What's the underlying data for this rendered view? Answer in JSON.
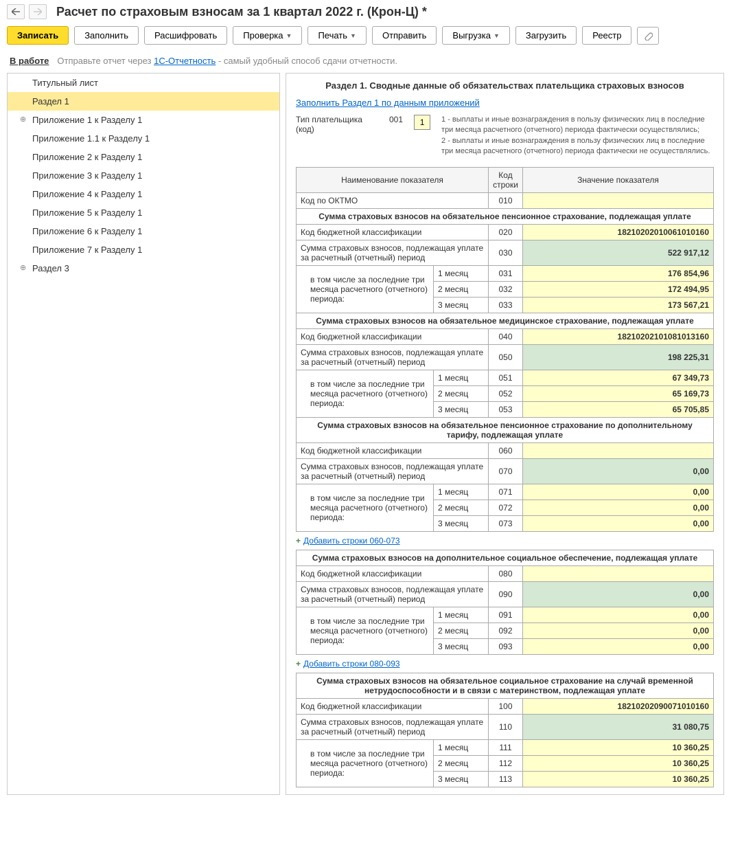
{
  "header": {
    "title": "Расчет по страховым взносам за 1 квартал 2022 г. (Крон-Ц) *"
  },
  "toolbar": {
    "write": "Записать",
    "fill": "Заполнить",
    "decode": "Расшифровать",
    "check": "Проверка",
    "print": "Печать",
    "send": "Отправить",
    "export": "Выгрузка",
    "load": "Загрузить",
    "registry": "Реестр"
  },
  "status": {
    "label": "В работе",
    "info_pre": "Отправьте отчет через ",
    "info_link": "1С-Отчетность",
    "info_post": " - самый удобный способ сдачи отчетности."
  },
  "tree": [
    {
      "label": "Титульный лист",
      "expand": false,
      "active": false
    },
    {
      "label": "Раздел 1",
      "expand": false,
      "active": true
    },
    {
      "label": "Приложение 1 к Разделу 1",
      "expand": true,
      "active": false
    },
    {
      "label": "Приложение 1.1 к Разделу 1",
      "expand": false,
      "active": false
    },
    {
      "label": "Приложение 2 к Разделу 1",
      "expand": false,
      "active": false
    },
    {
      "label": "Приложение 3 к Разделу 1",
      "expand": false,
      "active": false
    },
    {
      "label": "Приложение 4 к Разделу 1",
      "expand": false,
      "active": false
    },
    {
      "label": "Приложение 5 к Разделу 1",
      "expand": false,
      "active": false
    },
    {
      "label": "Приложение 6 к Разделу 1",
      "expand": false,
      "active": false
    },
    {
      "label": "Приложение 7 к Разделу 1",
      "expand": false,
      "active": false
    },
    {
      "label": "Раздел 3",
      "expand": true,
      "active": false
    }
  ],
  "section": {
    "title": "Раздел 1. Сводные данные об обязательствах плательщика страховых взносов",
    "fill_link": "Заполнить Раздел 1 по данным приложений",
    "payer_label": "Тип плательщика (код)",
    "payer_code": "001",
    "payer_input": "1",
    "payer_desc": "1 - выплаты и иные вознаграждения в пользу физических лиц в последние три месяца расчетного (отчетного) периода фактически осуществлялись;\n2 - выплаты и иные вознаграждения в пользу физических лиц в последние три месяца расчетного (отчетного) периода фактически не осуществлялись."
  },
  "table": {
    "headers": {
      "name": "Наименование показателя",
      "code": "Код строки",
      "value": "Значение показателя"
    },
    "oktmo": {
      "label": "Код по ОКТМО",
      "code": "010",
      "value": ""
    },
    "months": {
      "m1": "1 месяц",
      "m2": "2 месяц",
      "m3": "3 месяц"
    },
    "labels": {
      "kbk": "Код бюджетной классификации",
      "sum_period": "Сумма страховых взносов, подлежащая уплате за расчетный (отчетный) период",
      "incl_months": "в том числе за последние три месяца расчетного (отчетного) периода:"
    },
    "groups": [
      {
        "title": "Сумма страховых взносов на обязательное пенсионное страхование, подлежащая уплате",
        "kbk_code": "020",
        "kbk_val": "18210202010061010160",
        "sum_code": "030",
        "sum_val": "522 917,12",
        "m1_code": "031",
        "m1_val": "176 854,96",
        "m2_code": "032",
        "m2_val": "172 494,95",
        "m3_code": "033",
        "m3_val": "173 567,21",
        "add_link": ""
      },
      {
        "title": "Сумма страховых взносов на обязательное медицинское страхование, подлежащая уплате",
        "kbk_code": "040",
        "kbk_val": "18210202101081013160",
        "sum_code": "050",
        "sum_val": "198 225,31",
        "m1_code": "051",
        "m1_val": "67 349,73",
        "m2_code": "052",
        "m2_val": "65 169,73",
        "m3_code": "053",
        "m3_val": "65 705,85",
        "add_link": ""
      },
      {
        "title": "Сумма страховых взносов на обязательное пенсионное страхование по дополнительному тарифу, подлежащая уплате",
        "kbk_code": "060",
        "kbk_val": "",
        "sum_code": "070",
        "sum_val": "0,00",
        "m1_code": "071",
        "m1_val": "0,00",
        "m2_code": "072",
        "m2_val": "0,00",
        "m3_code": "073",
        "m3_val": "0,00",
        "add_link": "Добавить строки 060-073"
      },
      {
        "title": "Сумма страховых взносов на дополнительное социальное обеспечение, подлежащая уплате",
        "kbk_code": "080",
        "kbk_val": "",
        "sum_code": "090",
        "sum_val": "0,00",
        "m1_code": "091",
        "m1_val": "0,00",
        "m2_code": "092",
        "m2_val": "0,00",
        "m3_code": "093",
        "m3_val": "0,00",
        "add_link": "Добавить строки 080-093"
      },
      {
        "title": "Сумма страховых взносов на обязательное социальное страхование на случай временной нетрудоспособности и в связи с материнством, подлежащая уплате",
        "kbk_code": "100",
        "kbk_val": "18210202090071010160",
        "sum_code": "110",
        "sum_val": "31 080,75",
        "m1_code": "111",
        "m1_val": "10 360,25",
        "m2_code": "112",
        "m2_val": "10 360,25",
        "m3_code": "113",
        "m3_val": "10 360,25",
        "add_link": ""
      }
    ]
  }
}
